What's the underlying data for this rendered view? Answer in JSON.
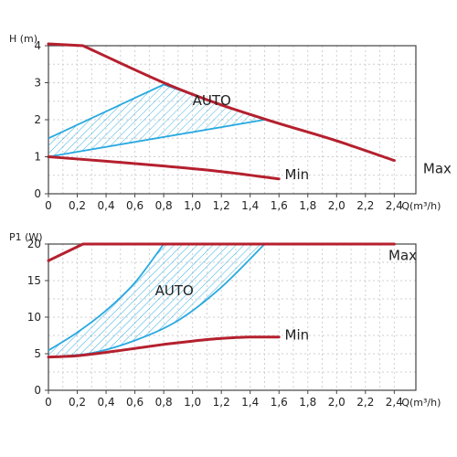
{
  "chart_data": [
    {
      "type": "line",
      "ylabel": "H (m)",
      "xlabel": "Q(m³/h)",
      "xlim": [
        0,
        2.4
      ],
      "ylim": [
        0,
        4
      ],
      "x_ticks": [
        "0",
        "0,2",
        "0,4",
        "0,6",
        "0,8",
        "1,0",
        "1,2",
        "1,4",
        "1,6",
        "1,8",
        "2,0",
        "2,2",
        "2,4"
      ],
      "y_ticks": [
        "0",
        "1",
        "2",
        "3",
        "4"
      ],
      "grid": true,
      "colors": {
        "curve": "#b5202e",
        "auto": "#29a9e0"
      },
      "series": [
        {
          "name": "Max",
          "x": [
            0,
            0.24,
            0.8,
            1.2,
            1.6,
            2.0,
            2.4
          ],
          "y": [
            4.05,
            4.0,
            3.0,
            2.4,
            1.9,
            1.43,
            0.9
          ]
        },
        {
          "name": "Min",
          "x": [
            0,
            0.4,
            0.8,
            1.2,
            1.6
          ],
          "y": [
            1.0,
            0.88,
            0.75,
            0.6,
            0.4
          ]
        }
      ],
      "auto_region": {
        "label": "AUTO",
        "upper": {
          "x": [
            0,
            0.8,
            1.5
          ],
          "y": [
            1.5,
            2.95,
            2.0
          ]
        },
        "lower": {
          "x": [
            0,
            1.5
          ],
          "y": [
            1.0,
            2.0
          ]
        }
      }
    },
    {
      "type": "line",
      "ylabel": "P1 (W)",
      "xlabel": "Q(m³/h)",
      "xlim": [
        0,
        2.4
      ],
      "ylim": [
        0,
        22
      ],
      "x_ticks": [
        "0",
        "0,2",
        "0,4",
        "0,6",
        "0,8",
        "1,0",
        "1,2",
        "1,4",
        "1,6",
        "1,8",
        "2,0",
        "2,2",
        "2,4"
      ],
      "y_ticks": [
        "0",
        "5",
        "10",
        "15",
        "20"
      ],
      "grid": true,
      "colors": {
        "curve": "#b5202e",
        "auto": "#29a9e0"
      },
      "series": [
        {
          "name": "Max",
          "x": [
            0,
            0.24,
            0.5,
            1.0,
            1.5,
            2.0,
            2.4
          ],
          "y": [
            19.5,
            22,
            22,
            22,
            22,
            22,
            22
          ]
        },
        {
          "name": "Min",
          "x": [
            0,
            0.2,
            0.4,
            0.6,
            0.8,
            1.0,
            1.2,
            1.4,
            1.6
          ],
          "y": [
            5.0,
            5.2,
            5.7,
            6.3,
            6.9,
            7.4,
            7.8,
            8.0,
            8.0
          ]
        }
      ],
      "auto_region": {
        "label": "AUTO",
        "left": {
          "x": [
            0,
            0.2,
            0.4,
            0.6,
            0.8
          ],
          "y": [
            6.0,
            8.7,
            12.0,
            16.2,
            22.0
          ]
        },
        "right": {
          "x": [
            0,
            0.3,
            0.6,
            0.9,
            1.2,
            1.5
          ],
          "y": [
            5.0,
            5.6,
            7.5,
            10.5,
            15.5,
            22.0
          ]
        }
      }
    }
  ]
}
